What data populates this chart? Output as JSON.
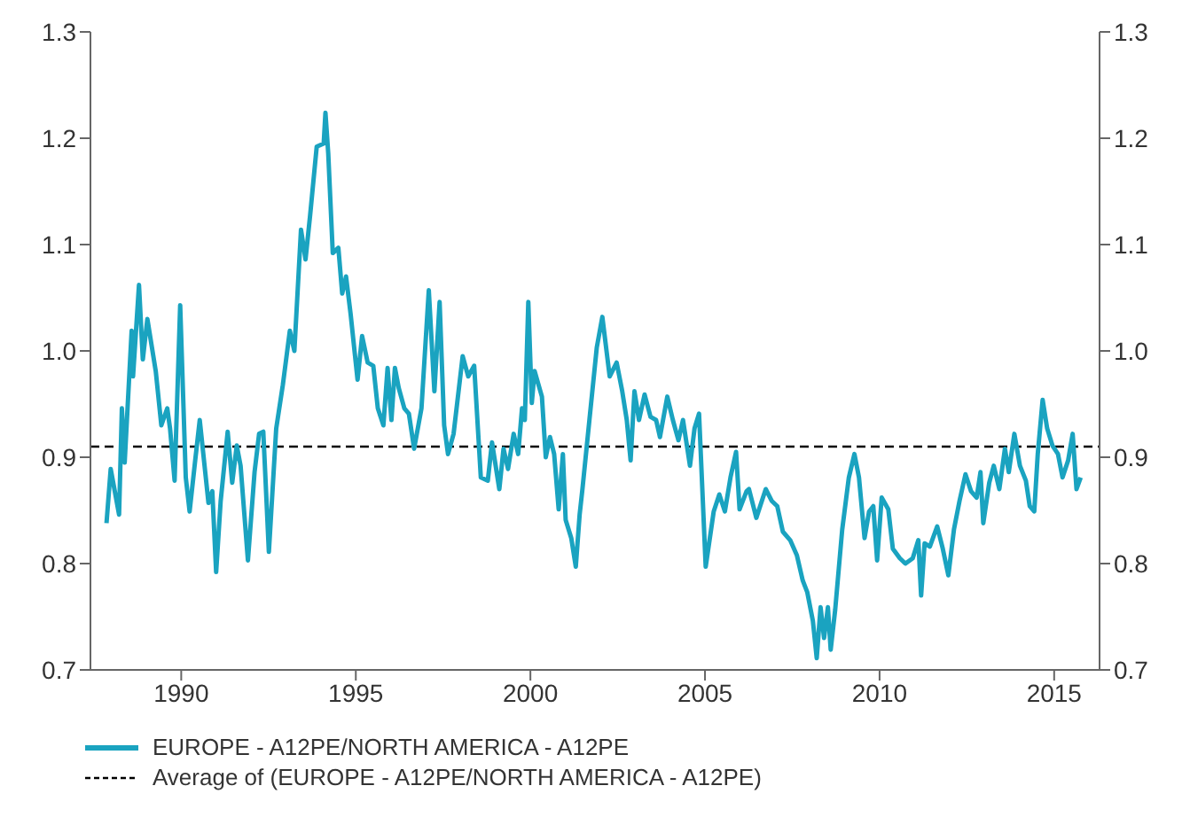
{
  "chart_data": {
    "type": "line",
    "legend": "bottom",
    "grid": false,
    "marker": "none",
    "line_style": "solid",
    "xlim": [
      1987.4,
      2016.3
    ],
    "xticks": [
      1990,
      1995,
      2000,
      2005,
      2010,
      2015
    ],
    "ylim": [
      0.7,
      1.3
    ],
    "yticks": [
      0.7,
      0.8,
      0.9,
      {
        "value": 1,
        "label": "1.0"
      },
      1.1,
      1.2,
      1.3
    ],
    "y2lim": [
      0.7,
      1.3
    ],
    "y2ticks": [
      0.7,
      0.8,
      0.9,
      {
        "value": 1,
        "label": "1.0"
      },
      1.1,
      1.2,
      1.3
    ],
    "ref_lines": [
      {
        "axis": "y",
        "value": 0.91,
        "label": "Average of (EUROPE - A12PE/NORTH AMERICA - A12PE)",
        "color": "#000000",
        "line_style": "dashed"
      }
    ],
    "series": [
      {
        "name": "EUROPE - A12PE/NORTH AMERICA - A12PE",
        "color": "#1aa3c0",
        "x": [
          1987.86,
          1987.98,
          1988.22,
          1988.3,
          1988.38,
          1988.58,
          1988.62,
          1988.79,
          1988.9,
          1989.03,
          1989.27,
          1989.43,
          1989.6,
          1989.68,
          1989.81,
          1989.97,
          1990.13,
          1990.24,
          1990.4,
          1990.53,
          1990.78,
          1990.89,
          1991.0,
          1991.13,
          1991.33,
          1991.46,
          1991.59,
          1991.7,
          1991.91,
          1992.1,
          1992.23,
          1992.35,
          1992.51,
          1992.72,
          1992.91,
          1993.11,
          1993.24,
          1993.43,
          1993.56,
          1993.69,
          1993.88,
          1994.08,
          1994.13,
          1994.21,
          1994.34,
          1994.5,
          1994.61,
          1994.72,
          1994.85,
          1995.05,
          1995.18,
          1995.34,
          1995.5,
          1995.63,
          1995.79,
          1995.91,
          1996.02,
          1996.12,
          1996.23,
          1996.39,
          1996.52,
          1996.67,
          1996.88,
          1997.09,
          1997.25,
          1997.4,
          1997.53,
          1997.64,
          1997.8,
          1998.06,
          1998.22,
          1998.39,
          1998.58,
          1998.78,
          1998.9,
          1999.11,
          1999.23,
          1999.36,
          1999.52,
          1999.65,
          1999.76,
          1999.84,
          1999.94,
          2000.04,
          2000.12,
          2000.33,
          2000.44,
          2000.56,
          2000.68,
          2000.81,
          2000.93,
          2001.01,
          2001.17,
          2001.3,
          2001.41,
          2001.49,
          2001.69,
          2001.9,
          2002.06,
          2002.27,
          2002.47,
          2002.63,
          2002.76,
          2002.87,
          2002.98,
          2003.11,
          2003.27,
          2003.44,
          2003.6,
          2003.71,
          2003.92,
          2004.08,
          2004.24,
          2004.37,
          2004.57,
          2004.7,
          2004.83,
          2005.02,
          2005.25,
          2005.41,
          2005.57,
          2005.73,
          2005.89,
          2005.99,
          2006.19,
          2006.26,
          2006.47,
          2006.74,
          2006.91,
          2007.07,
          2007.23,
          2007.44,
          2007.63,
          2007.8,
          2007.93,
          2008.09,
          2008.2,
          2008.31,
          2008.41,
          2008.52,
          2008.6,
          2008.73,
          2008.93,
          2009.12,
          2009.28,
          2009.41,
          2009.57,
          2009.7,
          2009.82,
          2009.93,
          2010.06,
          2010.25,
          2010.38,
          2010.58,
          2010.74,
          2010.95,
          2011.11,
          2011.19,
          2011.29,
          2011.44,
          2011.65,
          2011.81,
          2011.97,
          2012.13,
          2012.29,
          2012.46,
          2012.62,
          2012.78,
          2012.89,
          2012.97,
          2013.14,
          2013.27,
          2013.43,
          2013.59,
          2013.7,
          2013.86,
          2014.02,
          2014.19,
          2014.3,
          2014.43,
          2014.53,
          2014.67,
          2014.8,
          2014.95,
          2015.11,
          2015.24,
          2015.4,
          2015.53,
          2015.64,
          2015.76
        ],
        "values": [
          0.838,
          0.889,
          0.846,
          0.946,
          0.895,
          1.019,
          0.976,
          1.062,
          0.992,
          1.03,
          0.981,
          0.93,
          0.946,
          0.927,
          0.878,
          1.043,
          0.881,
          0.849,
          0.897,
          0.935,
          0.857,
          0.868,
          0.792,
          0.859,
          0.924,
          0.876,
          0.911,
          0.892,
          0.803,
          0.886,
          0.922,
          0.924,
          0.811,
          0.927,
          0.968,
          1.019,
          1.0,
          1.114,
          1.086,
          1.127,
          1.192,
          1.195,
          1.224,
          1.186,
          1.092,
          1.097,
          1.054,
          1.07,
          1.035,
          0.973,
          1.014,
          0.989,
          0.986,
          0.946,
          0.93,
          0.984,
          0.935,
          0.984,
          0.965,
          0.946,
          0.941,
          0.908,
          0.946,
          1.057,
          0.962,
          1.046,
          0.93,
          0.903,
          0.922,
          0.995,
          0.976,
          0.986,
          0.881,
          0.878,
          0.914,
          0.87,
          0.908,
          0.889,
          0.922,
          0.903,
          0.946,
          0.935,
          1.046,
          0.951,
          0.981,
          0.957,
          0.9,
          0.919,
          0.903,
          0.851,
          0.903,
          0.841,
          0.824,
          0.797,
          0.846,
          0.87,
          0.935,
          1.003,
          1.032,
          0.976,
          0.989,
          0.962,
          0.935,
          0.897,
          0.962,
          0.935,
          0.959,
          0.938,
          0.935,
          0.919,
          0.957,
          0.935,
          0.916,
          0.935,
          0.892,
          0.927,
          0.941,
          0.797,
          0.849,
          0.865,
          0.849,
          0.881,
          0.905,
          0.851,
          0.868,
          0.87,
          0.843,
          0.87,
          0.859,
          0.854,
          0.83,
          0.822,
          0.808,
          0.784,
          0.773,
          0.746,
          0.711,
          0.759,
          0.73,
          0.759,
          0.719,
          0.757,
          0.832,
          0.881,
          0.903,
          0.881,
          0.824,
          0.849,
          0.854,
          0.803,
          0.862,
          0.851,
          0.814,
          0.805,
          0.8,
          0.805,
          0.822,
          0.77,
          0.819,
          0.816,
          0.835,
          0.814,
          0.789,
          0.832,
          0.859,
          0.884,
          0.868,
          0.862,
          0.886,
          0.838,
          0.876,
          0.892,
          0.87,
          0.908,
          0.886,
          0.922,
          0.892,
          0.878,
          0.854,
          0.849,
          0.903,
          0.954,
          0.927,
          0.911,
          0.903,
          0.881,
          0.897,
          0.922,
          0.87,
          0.881
        ]
      }
    ]
  }
}
